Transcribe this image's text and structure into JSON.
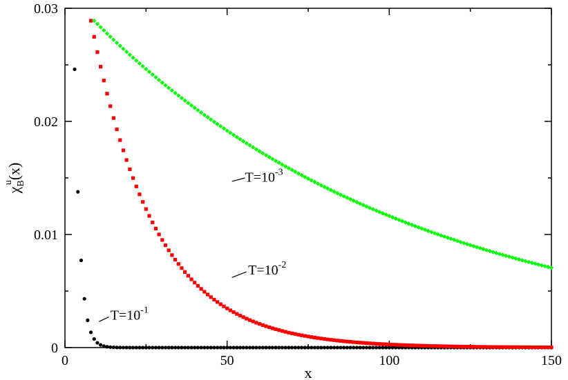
{
  "chart_data": {
    "type": "scatter",
    "xlabel": "x",
    "ylabel": {
      "base": "χ",
      "sub": "B",
      "sup": "u",
      "arg": "(x)"
    },
    "xlim": [
      0,
      150
    ],
    "ylim": [
      0,
      0.03
    ],
    "xticks": [
      {
        "value": 0,
        "label": "0"
      },
      {
        "value": 50,
        "label": "50"
      },
      {
        "value": 100,
        "label": "100"
      },
      {
        "value": 150,
        "label": "150"
      }
    ],
    "yticks": [
      {
        "value": 0,
        "label": "0"
      },
      {
        "value": 0.01,
        "label": "0.01"
      },
      {
        "value": 0.02,
        "label": "0.02"
      },
      {
        "value": 0.03,
        "label": "0.03"
      }
    ],
    "grid": false,
    "legend": "none",
    "series": [
      {
        "key": "t1e-1",
        "marker": "circle",
        "color": "#000000",
        "x_start": 3,
        "x_end": 150,
        "x_step": 1,
        "amplitude": 0.0246,
        "decay": 0.58
      },
      {
        "key": "t1e-2",
        "marker": "square",
        "color": "#ff0000",
        "x_start": 8,
        "x_end": 150,
        "x_step": 1,
        "amplitude": 0.0289,
        "decay": 0.0505
      },
      {
        "key": "t1e-3",
        "marker": "diamond",
        "color": "#00ff00",
        "x_start": 9,
        "x_end": 150,
        "x_step": 1,
        "amplitude": 0.0289,
        "decay": 0.01
      }
    ],
    "annotations": [
      {
        "key": "t1e-1",
        "base": "T=10",
        "exp": "-1",
        "x": 14,
        "y": 0.0029,
        "from": [
          10.5,
          0.0023
        ],
        "to": [
          13.5,
          0.0027
        ]
      },
      {
        "key": "t1e-2",
        "base": "T=10",
        "exp": "-2",
        "x": 56.5,
        "y": 0.0069,
        "from": [
          51.5,
          0.0062
        ],
        "to": [
          56,
          0.0067
        ]
      },
      {
        "key": "t1e-3",
        "base": "T=10",
        "exp": "-3",
        "x": 55.5,
        "y": 0.0151,
        "from": [
          51.5,
          0.0147
        ],
        "to": [
          55.5,
          0.015
        ]
      }
    ]
  }
}
